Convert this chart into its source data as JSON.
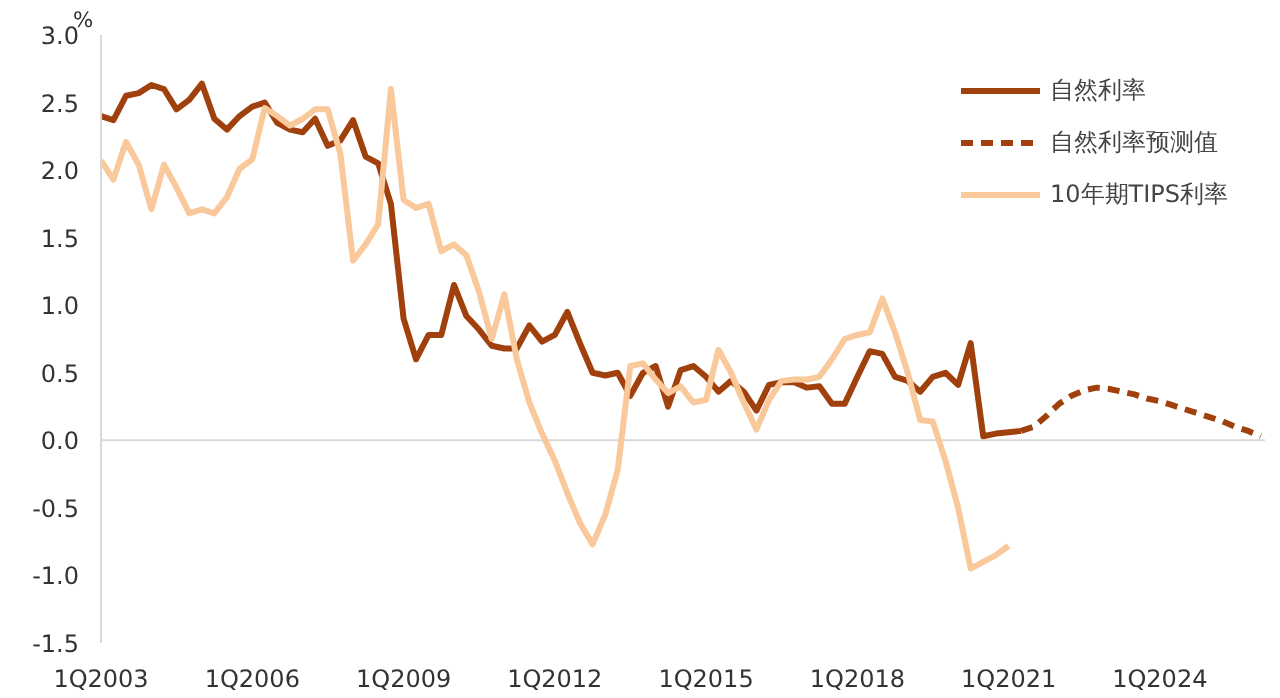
{
  "chart_data": {
    "type": "line",
    "ylabel": "%",
    "xlim": [
      "2003-01",
      "2026-02"
    ],
    "ylim": [
      -1.5,
      3.0
    ],
    "xticks": [
      {
        "value": "2003-01",
        "label": "1Q2003"
      },
      {
        "value": "2006-01",
        "label": "1Q2006"
      },
      {
        "value": "2009-01",
        "label": "1Q2009"
      },
      {
        "value": "2012-01",
        "label": "1Q2012"
      },
      {
        "value": "2015-01",
        "label": "1Q2015"
      },
      {
        "value": "2018-01",
        "label": "1Q2018"
      },
      {
        "value": "2021-01",
        "label": "1Q2021"
      },
      {
        "value": "2024-01",
        "label": "1Q2024"
      }
    ],
    "yticks": [
      {
        "value": -1.5,
        "label": "-1.5"
      },
      {
        "value": -1.0,
        "label": "-1.0"
      },
      {
        "value": -0.5,
        "label": "-0.5"
      },
      {
        "value": 0,
        "label": "0.0"
      },
      {
        "value": 0.5,
        "label": "0.5"
      },
      {
        "value": 1.0,
        "label": "1.0"
      },
      {
        "value": 1.5,
        "label": "1.5"
      },
      {
        "value": 2.0,
        "label": "2.0"
      },
      {
        "value": 2.5,
        "label": "2.5"
      },
      {
        "value": 3.0,
        "label": "3.0"
      }
    ],
    "grid": false,
    "legend": "top right",
    "marker": "none",
    "ref_lines": [
      {
        "axis": "y",
        "value": 0,
        "color": "#d9d9d9"
      }
    ],
    "series": [
      {
        "name": "自然利率",
        "color": "#a0410d",
        "line_style": "solid",
        "x": [
          "2003-01",
          "2003-04",
          "2003-07",
          "2003-10",
          "2004-01",
          "2004-04",
          "2004-07",
          "2004-10",
          "2005-01",
          "2005-04",
          "2005-07",
          "2005-10",
          "2006-01",
          "2006-04",
          "2006-07",
          "2006-10",
          "2007-01",
          "2007-04",
          "2007-07",
          "2007-10",
          "2008-01",
          "2008-04",
          "2008-07",
          "2008-10",
          "2009-01",
          "2009-04",
          "2009-07",
          "2009-10",
          "2010-01",
          "2010-04",
          "2010-07",
          "2010-10",
          "2011-01",
          "2011-04",
          "2011-07",
          "2011-10",
          "2012-01",
          "2012-04",
          "2012-07",
          "2012-10",
          "2013-01",
          "2013-04",
          "2013-07",
          "2013-10",
          "2014-01",
          "2014-04",
          "2014-07",
          "2014-10",
          "2015-01",
          "2015-04",
          "2015-07",
          "2015-10",
          "2016-01",
          "2016-04",
          "2016-07",
          "2016-10",
          "2017-01",
          "2017-04",
          "2017-07",
          "2017-10",
          "2018-01",
          "2018-04",
          "2018-07",
          "2018-10",
          "2019-01",
          "2019-04",
          "2019-07",
          "2019-10",
          "2020-01",
          "2020-04",
          "2020-07",
          "2020-10",
          "2021-01",
          "2021-04"
        ],
        "values": [
          2.4,
          2.37,
          2.55,
          2.57,
          2.63,
          2.6,
          2.45,
          2.52,
          2.64,
          2.38,
          2.3,
          2.4,
          2.47,
          2.5,
          2.35,
          2.3,
          2.28,
          2.38,
          2.18,
          2.22,
          2.37,
          2.1,
          2.05,
          1.75,
          0.9,
          0.6,
          0.78,
          0.78,
          1.15,
          0.92,
          0.82,
          0.7,
          0.68,
          0.68,
          0.85,
          0.73,
          0.78,
          0.95,
          0.72,
          0.5,
          0.48,
          0.5,
          0.33,
          0.5,
          0.55,
          0.25,
          0.52,
          0.55,
          0.47,
          0.36,
          0.44,
          0.36,
          0.22,
          0.41,
          0.43,
          0.43,
          0.39,
          0.4,
          0.27,
          0.27,
          0.47,
          0.66,
          0.64,
          0.47,
          0.44,
          0.36,
          0.47,
          0.5,
          0.41,
          0.72,
          0.03,
          0.05,
          0.06,
          0.07
        ]
      },
      {
        "name": "自然利率预测值",
        "color": "#a0410d",
        "line_style": "dashed",
        "x": [
          "2021-04",
          "2021-07",
          "2021-10",
          "2022-01",
          "2022-04",
          "2022-07",
          "2022-10",
          "2023-01",
          "2023-04",
          "2023-07",
          "2023-10",
          "2024-01",
          "2024-04",
          "2024-07",
          "2024-10",
          "2025-01",
          "2025-04",
          "2025-07",
          "2025-10",
          "2026-01"
        ],
        "values": [
          0.07,
          0.1,
          0.18,
          0.27,
          0.33,
          0.37,
          0.39,
          0.38,
          0.36,
          0.34,
          0.31,
          0.29,
          0.26,
          0.23,
          0.2,
          0.17,
          0.14,
          0.1,
          0.07,
          0.03
        ]
      },
      {
        "name": "10年期TIPS利率",
        "color": "#f9c89b",
        "line_style": "solid",
        "x": [
          "2003-01",
          "2003-04",
          "2003-07",
          "2003-10",
          "2004-01",
          "2004-04",
          "2004-07",
          "2004-10",
          "2005-01",
          "2005-04",
          "2005-07",
          "2005-10",
          "2006-01",
          "2006-04",
          "2006-07",
          "2006-10",
          "2007-01",
          "2007-04",
          "2007-07",
          "2007-10",
          "2008-01",
          "2008-04",
          "2008-07",
          "2008-10",
          "2009-01",
          "2009-04",
          "2009-07",
          "2009-10",
          "2010-01",
          "2010-04",
          "2010-07",
          "2010-10",
          "2011-01",
          "2011-04",
          "2011-07",
          "2011-10",
          "2012-01",
          "2012-04",
          "2012-07",
          "2012-10",
          "2013-01",
          "2013-04",
          "2013-07",
          "2013-10",
          "2014-01",
          "2014-04",
          "2014-07",
          "2014-10",
          "2015-01",
          "2015-04",
          "2015-07",
          "2015-10",
          "2016-01",
          "2016-04",
          "2016-07",
          "2016-10",
          "2017-01",
          "2017-04",
          "2017-07",
          "2017-10",
          "2018-01",
          "2018-04",
          "2018-07",
          "2018-10",
          "2019-01",
          "2019-04",
          "2019-07",
          "2019-10",
          "2020-01",
          "2020-04",
          "2020-07",
          "2020-10",
          "2021-01"
        ],
        "values": [
          2.07,
          1.93,
          2.21,
          2.04,
          1.71,
          2.04,
          1.87,
          1.68,
          1.71,
          1.68,
          1.8,
          2.01,
          2.08,
          2.46,
          2.4,
          2.33,
          2.38,
          2.45,
          2.45,
          2.12,
          1.33,
          1.45,
          1.6,
          2.6,
          1.78,
          1.72,
          1.75,
          1.4,
          1.45,
          1.37,
          1.1,
          0.75,
          1.08,
          0.6,
          0.28,
          0.05,
          -0.15,
          -0.39,
          -0.61,
          -0.77,
          -0.55,
          -0.22,
          0.55,
          0.57,
          0.45,
          0.35,
          0.4,
          0.28,
          0.3,
          0.67,
          0.5,
          0.28,
          0.08,
          0.3,
          0.44,
          0.45,
          0.45,
          0.47,
          0.6,
          0.75,
          0.78,
          0.8,
          1.05,
          0.8,
          0.5,
          0.15,
          0.14,
          -0.15,
          -0.5,
          -0.95,
          -0.9,
          -0.85,
          -0.78
        ]
      }
    ]
  }
}
